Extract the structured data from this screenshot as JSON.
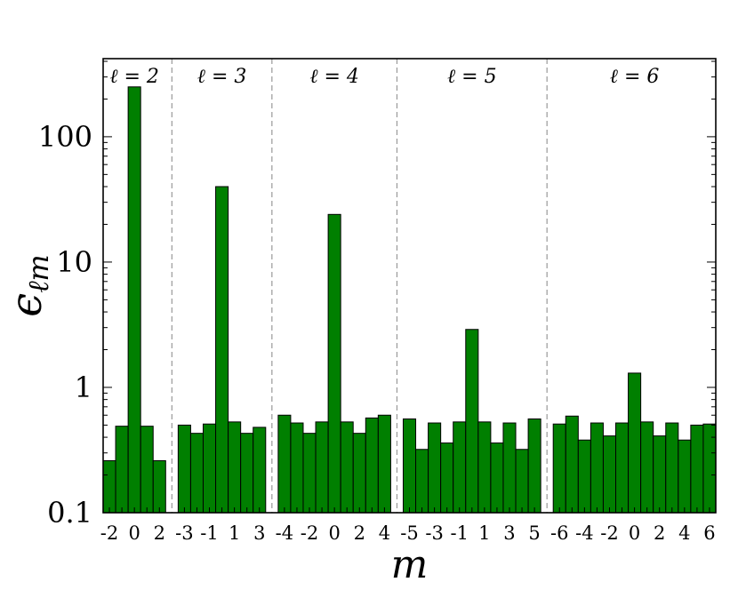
{
  "chart_data": {
    "type": "bar",
    "xlabel": "m",
    "ylabel": "ϵ",
    "ylabel_subscript": "ℓm",
    "yscale": "log",
    "ylim": [
      0.1,
      420
    ],
    "yticks": [
      {
        "value": 0.1,
        "label": "0.1"
      },
      {
        "value": 1,
        "label": "1"
      },
      {
        "value": 10,
        "label": "10"
      },
      {
        "value": 100,
        "label": "100"
      }
    ],
    "bar_color": "#007f00",
    "separator_color": "#999999",
    "groups": [
      {
        "label": "ℓ = 2",
        "m": [
          -2,
          -1,
          0,
          1,
          2
        ],
        "tick_labels": [
          "-2",
          "",
          "0",
          "",
          "2"
        ],
        "values": [
          0.26,
          0.49,
          250,
          0.49,
          0.26
        ]
      },
      {
        "label": "ℓ = 3",
        "m": [
          -3,
          -2,
          -1,
          0,
          1,
          2,
          3
        ],
        "tick_labels": [
          "-3",
          "",
          "-1",
          "",
          "1",
          "",
          "3"
        ],
        "values": [
          0.5,
          0.43,
          0.51,
          40,
          0.53,
          0.43,
          0.48
        ]
      },
      {
        "label": "ℓ = 4",
        "m": [
          -4,
          -3,
          -2,
          -1,
          0,
          1,
          2,
          3,
          4
        ],
        "tick_labels": [
          "-4",
          "",
          "-2",
          "",
          "0",
          "",
          "2",
          "",
          "4"
        ],
        "values": [
          0.6,
          0.52,
          0.43,
          0.53,
          24,
          0.53,
          0.43,
          0.57,
          0.6
        ]
      },
      {
        "label": "ℓ = 5",
        "m": [
          -5,
          -4,
          -3,
          -2,
          -1,
          0,
          1,
          2,
          3,
          4,
          5
        ],
        "tick_labels": [
          "-5",
          "",
          "-3",
          "",
          "-1",
          "",
          "1",
          "",
          "3",
          "",
          "5"
        ],
        "values": [
          0.56,
          0.32,
          0.52,
          0.36,
          0.53,
          2.9,
          0.53,
          0.36,
          0.52,
          0.32,
          0.56
        ]
      },
      {
        "label": "ℓ = 6",
        "m": [
          -6,
          -5,
          -4,
          -3,
          -2,
          -1,
          0,
          1,
          2,
          3,
          4,
          5,
          6
        ],
        "tick_labels": [
          "-6",
          "",
          "-4",
          "",
          "-2",
          "",
          "0",
          "",
          "2",
          "",
          "4",
          "",
          "6"
        ],
        "values": [
          0.51,
          0.59,
          0.38,
          0.52,
          0.41,
          0.52,
          1.3,
          0.53,
          0.41,
          0.52,
          0.38,
          0.5,
          0.51
        ]
      }
    ]
  }
}
